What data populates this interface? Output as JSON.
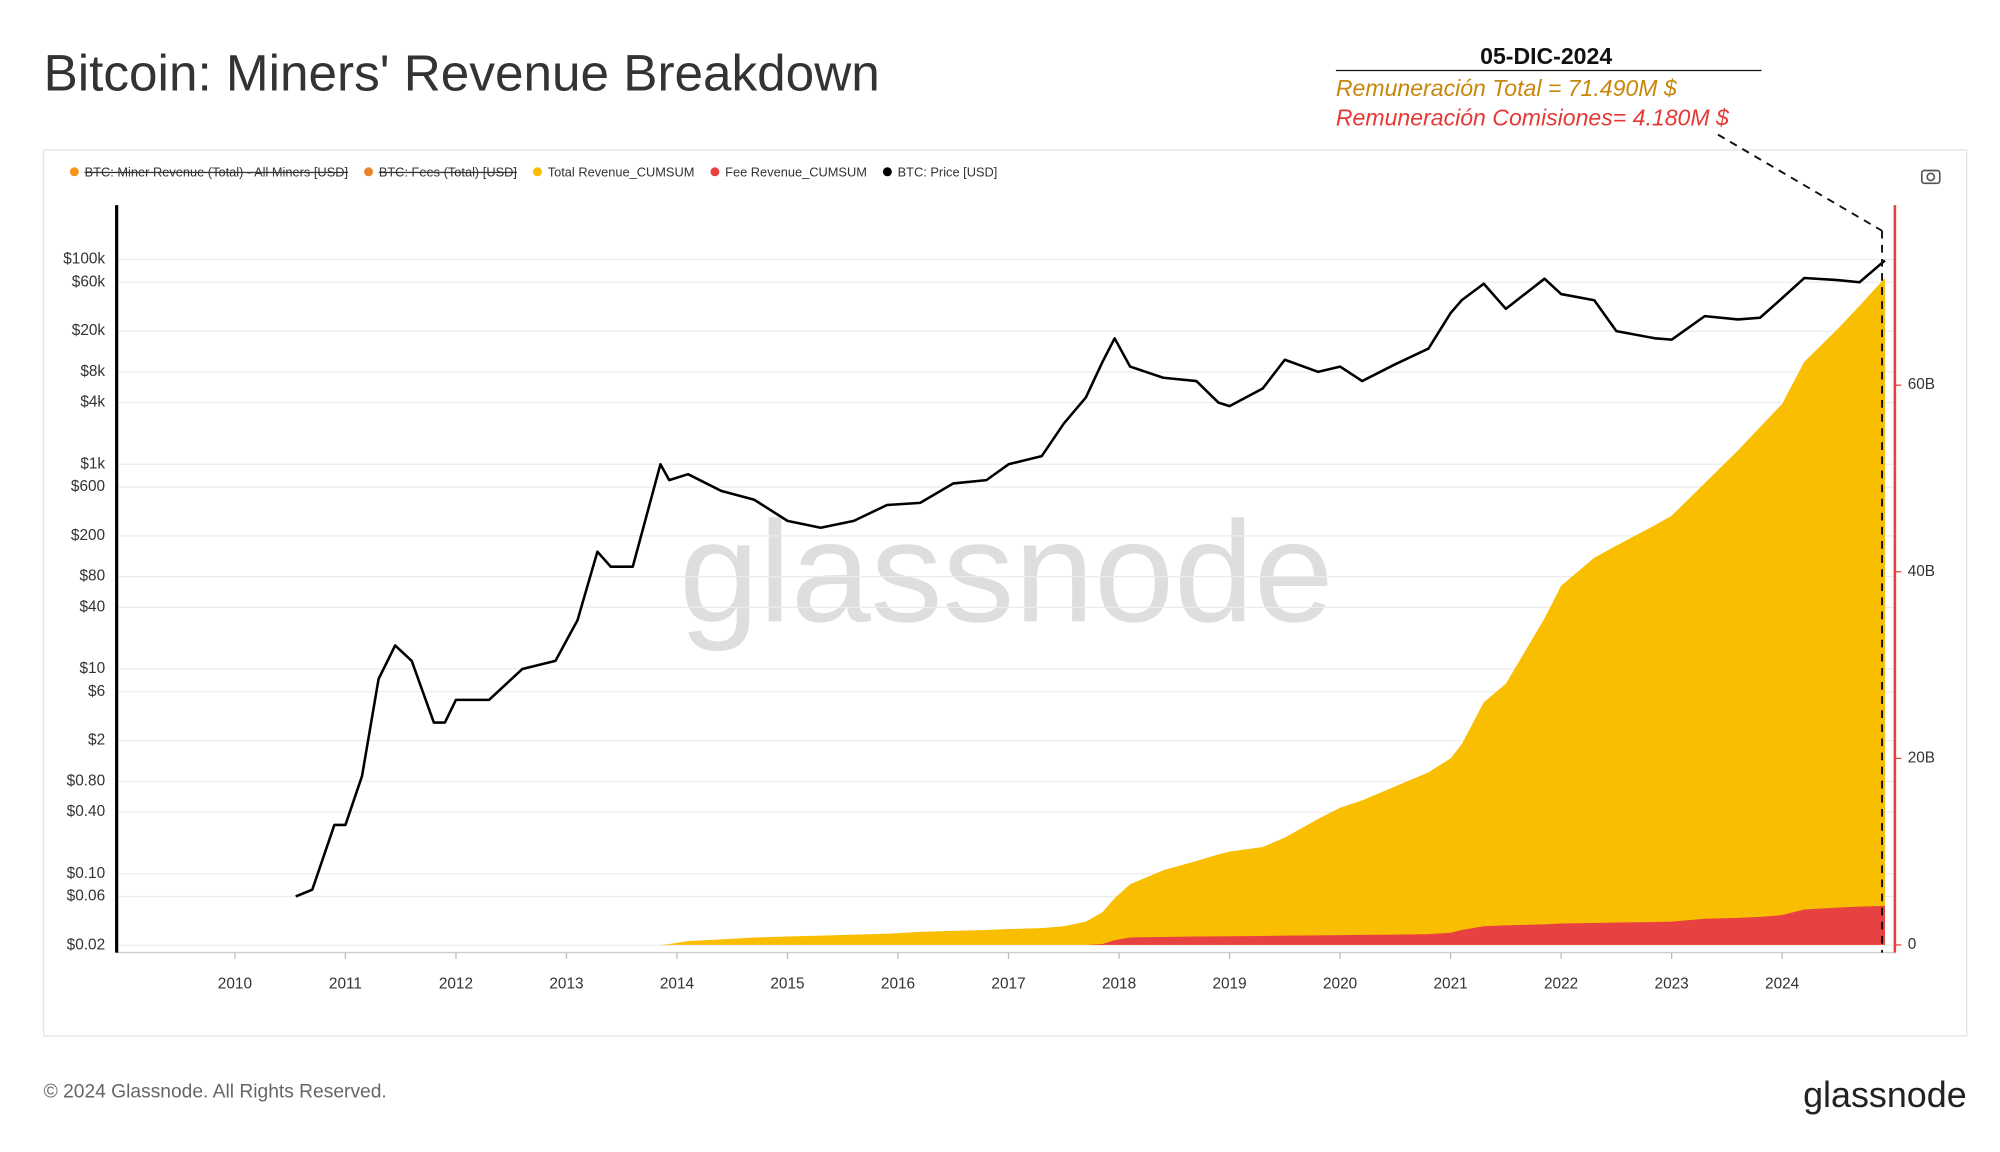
{
  "chart_data": {
    "type": "area",
    "title": "Bitcoin: Miners' Revenue Breakdown",
    "annotations": [
      "05-DIC-2024",
      "Remuneración Total = 71.490M $",
      "Remuneración Comisiones= 4.180M $"
    ],
    "watermark": "glassnode",
    "footer": "© 2024 Glassnode. All Rights Reserved.",
    "logo": "glassnode",
    "hidden_series": [
      {
        "name": "BTC: Miner Revenue (Total) - All Miners [USD]",
        "color": "#f7931a"
      },
      {
        "name": "BTC: Fees (Total) [USD]",
        "color": "#e8832a"
      }
    ],
    "x": [
      2010.55,
      2010.7,
      2010.9,
      2011.0,
      2011.15,
      2011.3,
      2011.45,
      2011.6,
      2011.8,
      2011.9,
      2012.0,
      2012.3,
      2012.6,
      2012.9,
      2013.1,
      2013.28,
      2013.4,
      2013.6,
      2013.85,
      2013.93,
      2014.1,
      2014.4,
      2014.7,
      2015.0,
      2015.3,
      2015.6,
      2015.9,
      2016.2,
      2016.5,
      2016.8,
      2017.0,
      2017.3,
      2017.5,
      2017.7,
      2017.85,
      2017.96,
      2018.1,
      2018.4,
      2018.7,
      2018.9,
      2019.0,
      2019.3,
      2019.5,
      2019.8,
      2020.0,
      2020.2,
      2020.5,
      2020.8,
      2021.0,
      2021.1,
      2021.3,
      2021.5,
      2021.85,
      2022.0,
      2022.3,
      2022.5,
      2022.85,
      2023.0,
      2023.3,
      2023.6,
      2023.8,
      2024.0,
      2024.2,
      2024.5,
      2024.7,
      2024.93
    ],
    "series": [
      {
        "name": "Total Revenue_CUMSUM",
        "color": "#f9be00",
        "type": "area",
        "axis": "y2",
        "values": [
          0,
          0,
          0,
          0,
          0,
          0,
          0,
          0,
          0,
          0,
          0,
          0,
          0,
          0,
          0,
          0,
          0,
          0,
          0,
          100000000,
          400000000,
          600000000,
          800000000,
          900000000,
          1000000000,
          1100000000,
          1200000000,
          1400000000,
          1500000000,
          1600000000,
          1700000000,
          1800000000,
          2000000000,
          2500000000,
          3500000000,
          5000000000,
          6500000000,
          8000000000,
          9000000000,
          9700000000,
          10000000000,
          10500000000,
          11500000000,
          13500000000,
          14700000000,
          15500000000,
          17000000000,
          18500000000,
          20000000000,
          21500000000,
          26000000000,
          28000000000,
          35000000000,
          38500000000,
          41500000000,
          42800000000,
          45000000000,
          46000000000,
          49500000000,
          53000000000,
          55500000000,
          58000000000,
          62500000000,
          66000000000,
          68500000000,
          71490000000
        ]
      },
      {
        "name": "Fee Revenue_CUMSUM",
        "color": "#e84142",
        "type": "area",
        "axis": "y2",
        "values": [
          0,
          0,
          0,
          0,
          0,
          0,
          0,
          0,
          0,
          0,
          0,
          0,
          0,
          0,
          0,
          0,
          0,
          0,
          0,
          0,
          0,
          0,
          0,
          0,
          0,
          0,
          0,
          0,
          0,
          0,
          0,
          0,
          0,
          0,
          100000000,
          500000000,
          800000000,
          850000000,
          900000000,
          920000000,
          930000000,
          950000000,
          1000000000,
          1020000000,
          1050000000,
          1080000000,
          1100000000,
          1150000000,
          1300000000,
          1600000000,
          2000000000,
          2100000000,
          2200000000,
          2300000000,
          2350000000,
          2400000000,
          2450000000,
          2500000000,
          2800000000,
          2900000000,
          3000000000,
          3200000000,
          3800000000,
          4000000000,
          4100000000,
          4180000000
        ]
      },
      {
        "name": "BTC: Price [USD]",
        "color": "#000000",
        "type": "line",
        "values": [
          0.06,
          0.07,
          0.3,
          0.3,
          0.9,
          8,
          17,
          12,
          3,
          3,
          5,
          5,
          10,
          12,
          30,
          140,
          100,
          100,
          1000,
          700,
          800,
          550,
          450,
          280,
          240,
          280,
          400,
          420,
          650,
          700,
          1000,
          1200,
          2500,
          4500,
          10000,
          17000,
          9000,
          7000,
          6500,
          4000,
          3700,
          5500,
          10500,
          8000,
          9000,
          6500,
          9500,
          13500,
          30000,
          40000,
          58000,
          33000,
          65000,
          46000,
          40000,
          20000,
          17000,
          16500,
          28000,
          26000,
          27000,
          42000,
          66000,
          63000,
          60000,
          98000
        ]
      }
    ],
    "xlim": [
      2008.93,
      2025.02
    ],
    "xticks": [
      2010,
      2011,
      2012,
      2013,
      2014,
      2015,
      2016,
      2017,
      2018,
      2019,
      2020,
      2021,
      2022,
      2023,
      2024
    ],
    "ylim": [
      0.017,
      340000
    ],
    "log_y": true,
    "yticks": [
      {
        "value": 100000,
        "label": "$100k"
      },
      {
        "value": 60000,
        "label": "$60k"
      },
      {
        "value": 20000,
        "label": "$20k"
      },
      {
        "value": 8000,
        "label": "$8k"
      },
      {
        "value": 4000,
        "label": "$4k"
      },
      {
        "value": 1000,
        "label": "$1k"
      },
      {
        "value": 600,
        "label": "$600"
      },
      {
        "value": 200,
        "label": "$200"
      },
      {
        "value": 80,
        "label": "$80"
      },
      {
        "value": 40,
        "label": "$40"
      },
      {
        "value": 10,
        "label": "$10"
      },
      {
        "value": 6,
        "label": "$6"
      },
      {
        "value": 2,
        "label": "$2"
      },
      {
        "value": 0.8,
        "label": "$0.80"
      },
      {
        "value": 0.4,
        "label": "$0.40"
      },
      {
        "value": 0.1,
        "label": "$0.10"
      },
      {
        "value": 0.06,
        "label": "$0.06"
      },
      {
        "value": 0.02,
        "label": "$0.02"
      }
    ],
    "y2lim": [
      -820000000,
      79300000000
    ],
    "y2ticks": [
      0,
      {
        "value": 20000000000,
        "label": "20B"
      },
      {
        "value": 40000000000,
        "label": "40B"
      },
      {
        "value": 60000000000,
        "label": "60B"
      }
    ],
    "grid": true
  }
}
